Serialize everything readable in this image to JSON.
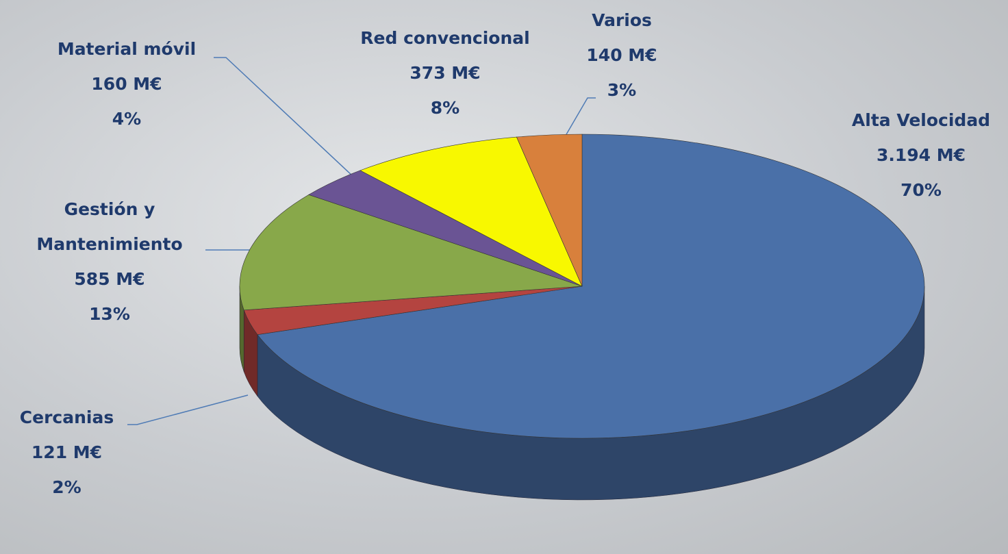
{
  "chart_data": {
    "type": "pie3d",
    "categories": [
      "Alta Velocidad",
      "Cercanias",
      "Gestión y Mantenimiento",
      "Material móvil",
      "Red convencional",
      "Varios"
    ],
    "values": [
      3194,
      121,
      585,
      160,
      373,
      140
    ],
    "value_labels": [
      "3.194 M€",
      "121 M€",
      "585 M€",
      "160 M€",
      "373 M€",
      "140 M€"
    ],
    "percents": [
      70,
      2,
      13,
      4,
      8,
      3
    ],
    "percent_labels": [
      "70%",
      "2%",
      "13%",
      "4%",
      "8%",
      "3%"
    ],
    "colors": [
      "#4a70a8",
      "#b44440",
      "#88a84a",
      "#6a5494",
      "#f8f800",
      "#d8803c"
    ]
  }
}
